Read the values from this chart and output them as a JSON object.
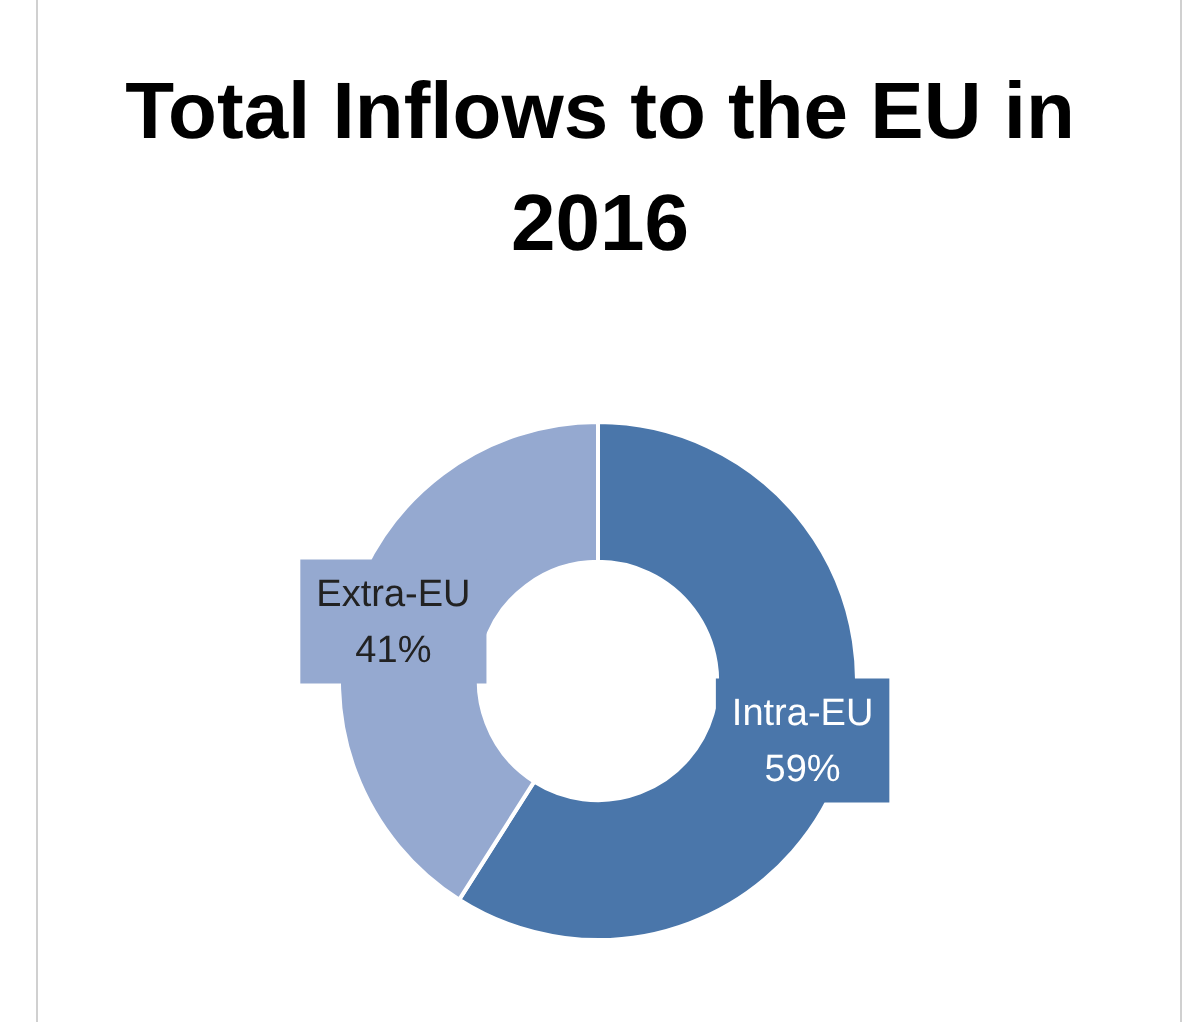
{
  "chart_data": {
    "type": "donut",
    "title": "Total Inflows to the EU in 2016",
    "categories": [
      "Intra-EU",
      "Extra-EU"
    ],
    "values": [
      59,
      41
    ],
    "colors": [
      "#4a76aa",
      "#95a9d0"
    ],
    "value_labels": [
      "59%",
      "41%"
    ],
    "legend": false
  }
}
